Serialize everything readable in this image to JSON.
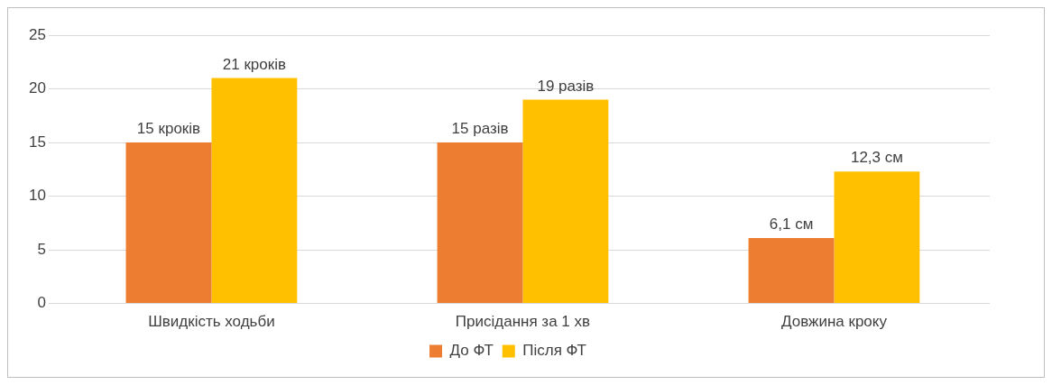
{
  "chart_data": {
    "type": "bar",
    "categories": [
      "Швидкість ходьби",
      "Присідання за 1 хв",
      "Довжина кроку"
    ],
    "series": [
      {
        "name": "До ФТ",
        "color": "#ed7d31",
        "values": [
          15,
          15,
          6.1
        ],
        "value_labels": [
          "15 кроків",
          "15 разів",
          "6,1 см"
        ]
      },
      {
        "name": "Після ФТ",
        "color": "#ffc000",
        "values": [
          21,
          19,
          12.3
        ],
        "value_labels": [
          "21 кроків",
          "19 разів",
          "12,3 см"
        ]
      }
    ],
    "ylim": [
      0,
      25
    ],
    "yticks": [
      0,
      5,
      10,
      15,
      20,
      25
    ],
    "grid": "y",
    "legend": "bottom"
  }
}
